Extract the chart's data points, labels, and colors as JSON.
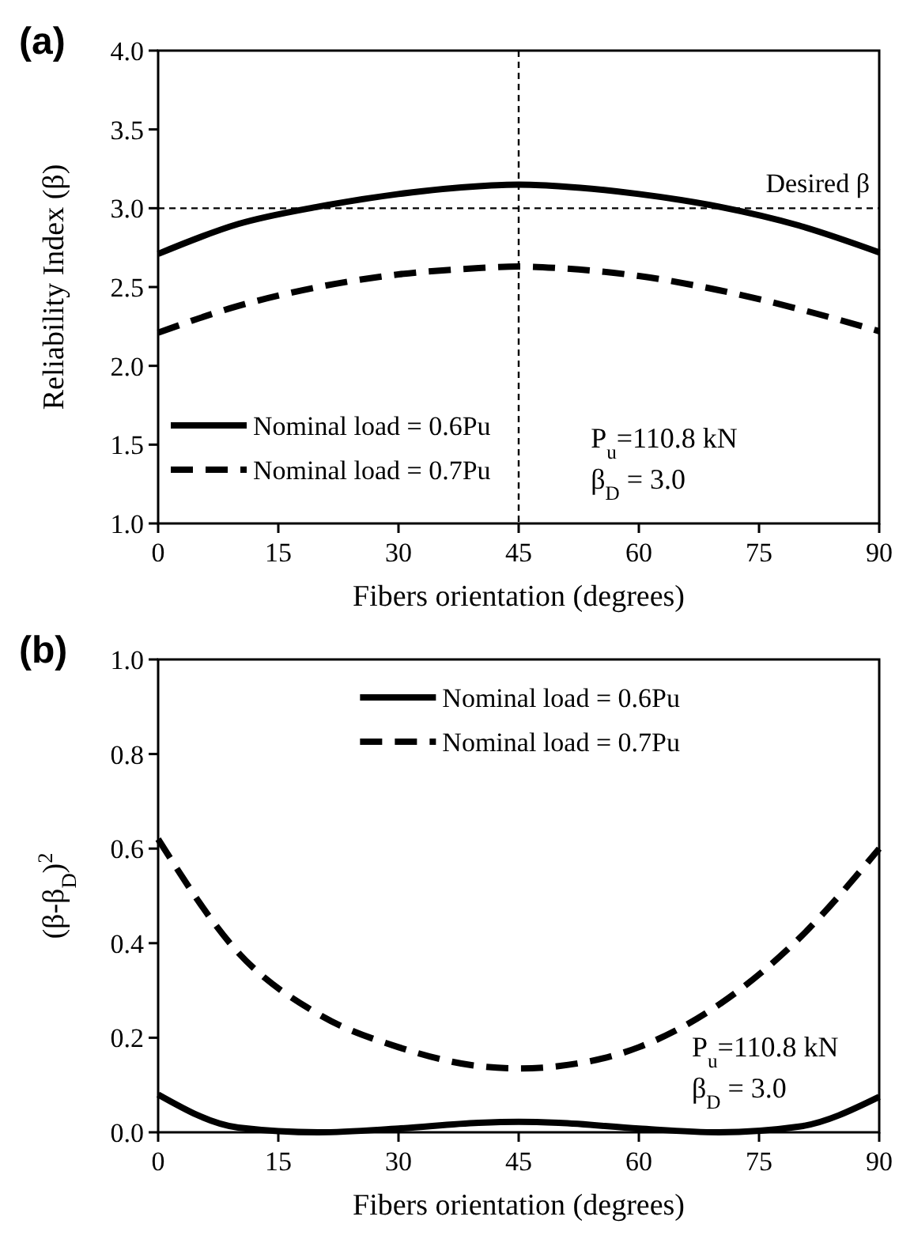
{
  "chart_data": [
    {
      "type": "line",
      "title": "(a)",
      "xlabel": "Fibers orientation (degrees)",
      "ylabel": "Reliability Index (β)",
      "x": [
        0,
        10,
        20,
        30,
        40,
        45,
        50,
        60,
        70,
        80,
        90
      ],
      "xlim": [
        0,
        90
      ],
      "xticks": [
        0,
        15,
        30,
        45,
        60,
        75,
        90
      ],
      "ylim": [
        1,
        4
      ],
      "yticks": [
        {
          "value": 1,
          "label": "1.0"
        },
        {
          "value": 1.5,
          "label": "1.5"
        },
        {
          "value": 2,
          "label": "2.0"
        },
        {
          "value": 2.5,
          "label": "2.5"
        },
        {
          "value": 3,
          "label": "3.0"
        },
        {
          "value": 3.5,
          "label": "3.5"
        },
        {
          "value": 4,
          "label": "4.0"
        }
      ],
      "grid": false,
      "legend": "bottom left",
      "series": [
        {
          "name": "Nominal load = 0.6Pu",
          "color": "#000000",
          "line_style": "solid",
          "values": [
            2.71,
            2.9,
            3.01,
            3.09,
            3.14,
            3.15,
            3.14,
            3.09,
            3.01,
            2.89,
            2.72
          ]
        },
        {
          "name": "Nominal load = 0.7Pu",
          "color": "#000000",
          "line_style": "dashed",
          "values": [
            2.21,
            2.38,
            2.5,
            2.58,
            2.62,
            2.63,
            2.62,
            2.57,
            2.48,
            2.36,
            2.22
          ]
        }
      ],
      "ref_lines": [
        {
          "axis": "y",
          "value": 3,
          "label": "Desired β",
          "line_style": "dashed"
        },
        {
          "axis": "x",
          "value": 45,
          "label": null,
          "line_style": "dashed"
        }
      ],
      "annotations": [
        "P$_{u}$=110.8 kN",
        "β$_{D}$ = 3.0"
      ]
    },
    {
      "type": "line",
      "title": "(b)",
      "xlabel": "Fibers orientation (degrees)",
      "ylabel": "(β-β$_{D}$)$^{2}$",
      "x": [
        0,
        10,
        20,
        30,
        40,
        45,
        50,
        60,
        70,
        80,
        90
      ],
      "xlim": [
        0,
        90
      ],
      "xticks": [
        0,
        15,
        30,
        45,
        60,
        75,
        90
      ],
      "ylim": [
        0,
        1
      ],
      "yticks": [
        {
          "value": 0,
          "label": "0.0"
        },
        {
          "value": 0.2,
          "label": "0.2"
        },
        {
          "value": 0.4,
          "label": "0.4"
        },
        {
          "value": 0.6,
          "label": "0.6"
        },
        {
          "value": 0.8,
          "label": "0.8"
        },
        {
          "value": 1,
          "label": "1.0"
        }
      ],
      "grid": false,
      "legend": "top",
      "series": [
        {
          "name": "Nominal load = 0.6Pu",
          "color": "#000000",
          "line_style": "solid",
          "values": [
            0.08,
            0.01,
            0,
            0.008,
            0.02,
            0.022,
            0.02,
            0.008,
            0,
            0.012,
            0.075
          ]
        },
        {
          "name": "Nominal load = 0.7Pu",
          "color": "#000000",
          "line_style": "dashed",
          "values": [
            0.62,
            0.38,
            0.25,
            0.18,
            0.14,
            0.135,
            0.14,
            0.18,
            0.27,
            0.41,
            0.6
          ]
        }
      ],
      "annotations": [
        "P$_{u}$=110.8 kN",
        "β$_{D}$ = 3.0"
      ]
    }
  ]
}
